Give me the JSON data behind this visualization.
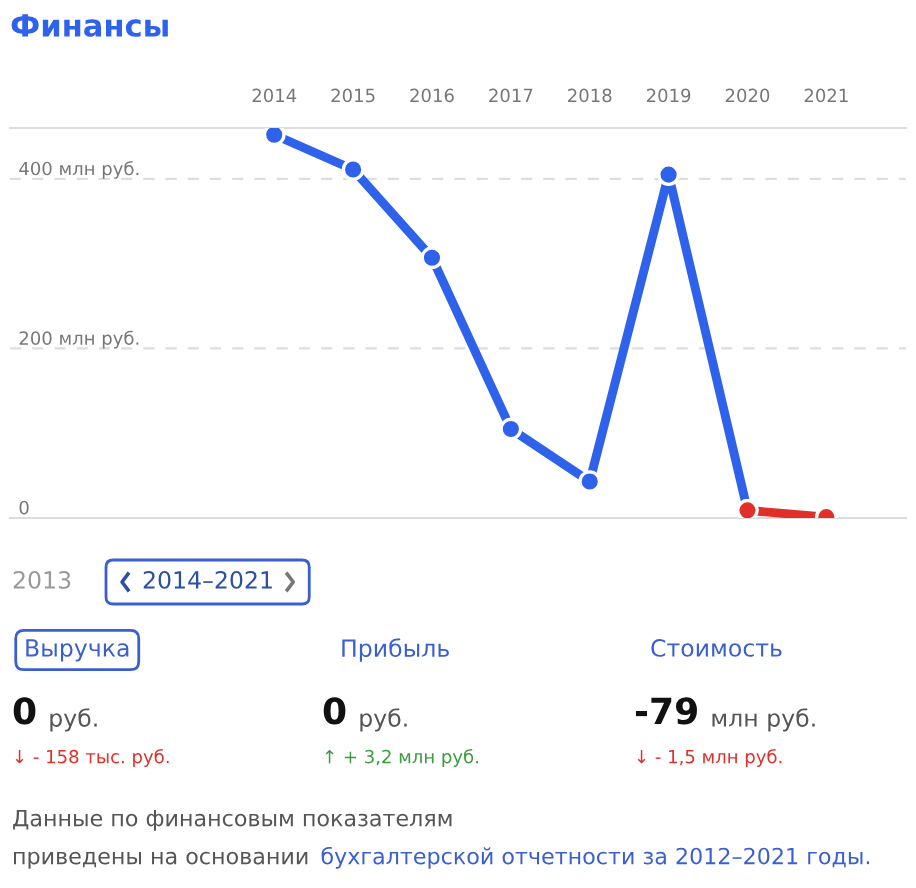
{
  "chart_data": {
    "type": "line",
    "title": "Финансы",
    "categories": [
      "2014",
      "2015",
      "2016",
      "2017",
      "2018",
      "2019",
      "2020",
      "2021"
    ],
    "series": [
      {
        "color": "#2f62ea",
        "values": [
          452,
          411,
          307,
          105,
          43,
          405,
          9,
          null
        ]
      },
      {
        "color": "#e0302a",
        "values": [
          null,
          null,
          null,
          null,
          null,
          null,
          9,
          1
        ]
      }
    ],
    "yticks": [
      0,
      {
        "value": 200,
        "label": "200 млн руб."
      },
      {
        "value": 400,
        "label": "400 млн руб."
      }
    ],
    "ylim": [
      0,
      460
    ],
    "grid": "y",
    "marker": "circle",
    "line_style": "solid",
    "annotations": [
      "2013",
      "2014–2021",
      "Выручка",
      "Прибыль",
      "Стоимость",
      "0",
      "руб.",
      "0",
      "руб.",
      "-79",
      "млн руб.",
      "↓ - 158 тыс. руб.",
      "↑ + 3,2 млн руб.",
      "↓ - 1,5 млн руб.",
      "Данные по финансовым показателям",
      "приведены на основании",
      "бухгалтерской отчетности за 2012–2021 годы."
    ]
  }
}
